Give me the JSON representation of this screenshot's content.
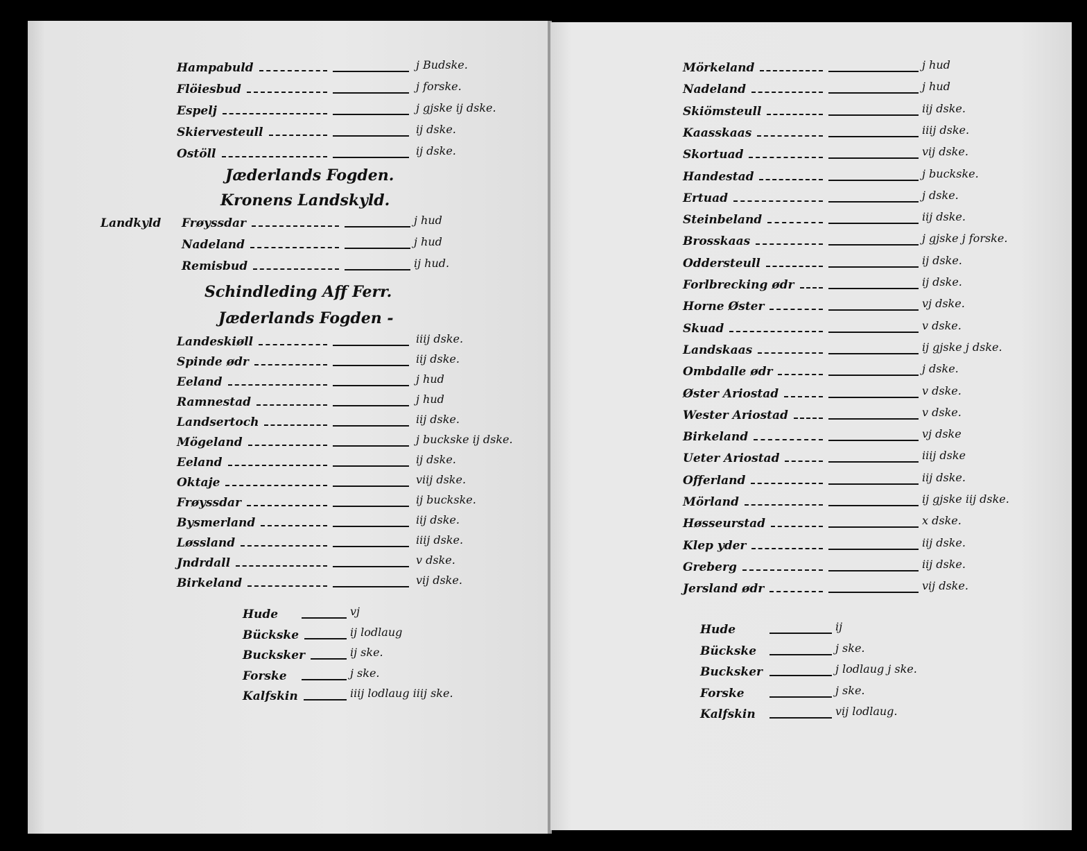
{
  "left_page": {
    "entries_top": [
      {
        "name": "Hampabuld",
        "value": "j Budske."
      },
      {
        "name": "Flöiesbud",
        "value": "j forske."
      },
      {
        "name": "Espelj",
        "value": "j gjske ij dske."
      },
      {
        "name": "Skiervesteull",
        "value": "ij dske."
      },
      {
        "name": "Ostöll",
        "value": "ij dske."
      }
    ],
    "heading_1": "Jæderlands Fogden.",
    "heading_2": "Kronens Landskyld.",
    "margin_note": "Landkyld",
    "entries_landskyld": [
      {
        "name": "Frøyssdar",
        "value": "j hud"
      },
      {
        "name": "Nadeland",
        "value": "j hud"
      },
      {
        "name": "Remisbud",
        "value": "ij hud."
      }
    ],
    "heading_3": "Schindleding Aff Ferr.",
    "heading_4": "Jæderlands Fogden -",
    "entries_main": [
      {
        "name": "Landeskiøll",
        "value": "iiij dske."
      },
      {
        "name": "Spinde ødr",
        "value": "iij dske."
      },
      {
        "name": "Eeland",
        "value": "j hud"
      },
      {
        "name": "Ramnestad",
        "value": "j hud"
      },
      {
        "name": "Landsertoch",
        "value": "iij dske."
      },
      {
        "name": "Mögeland",
        "value": "j buckske ij dske."
      },
      {
        "name": "Eeland",
        "value": "ij dske."
      },
      {
        "name": "Oktaje",
        "value": "viij dske."
      },
      {
        "name": "Frøyssdar",
        "value": "ij buckske."
      },
      {
        "name": "Bysmerland",
        "value": "iij dske."
      },
      {
        "name": "Løssland",
        "value": "iiij dske."
      },
      {
        "name": "Jndrdall",
        "value": "v dske."
      },
      {
        "name": "Birkeland",
        "value": "vij dske."
      }
    ],
    "summary": [
      {
        "name": "Hude",
        "value": "vj"
      },
      {
        "name": "Bückske",
        "value": "ij lodlaug"
      },
      {
        "name": "Bucksker",
        "value": "ij ske."
      },
      {
        "name": "Forske",
        "value": "j ske."
      },
      {
        "name": "Kalfskin",
        "value": "iiij lodlaug iiij ske."
      }
    ]
  },
  "right_page": {
    "entries": [
      {
        "name": "Mörkeland",
        "value": "j hud"
      },
      {
        "name": "Nadeland",
        "value": "j hud"
      },
      {
        "name": "Skiömsteull",
        "value": "iij dske."
      },
      {
        "name": "Kaasskaas",
        "value": "iiij dske."
      },
      {
        "name": "Skortuad",
        "value": "vij dske."
      },
      {
        "name": "Handestad",
        "value": "j buckske."
      },
      {
        "name": "Ertuad",
        "value": "j dske."
      },
      {
        "name": "Steinbeland",
        "value": "iij dske."
      },
      {
        "name": "Brosskaas",
        "value": "j gjske j forske."
      },
      {
        "name": "Oddersteull",
        "value": "ij dske."
      },
      {
        "name": "Forlbrecking ødr",
        "value": "ij dske."
      },
      {
        "name": "Horne Øster",
        "value": "vj dske."
      },
      {
        "name": "Skuad",
        "value": "v dske."
      },
      {
        "name": "Landskaas",
        "value": "ij gjske j dske."
      },
      {
        "name": "Ombdalle ødr",
        "value": "j dske."
      },
      {
        "name": "Øster Ariostad",
        "value": "v dske."
      },
      {
        "name": "Wester Ariostad",
        "value": "v dske."
      },
      {
        "name": "Birkeland",
        "value": "vj dske"
      },
      {
        "name": "Ueter Ariostad",
        "value": "iiij dske"
      },
      {
        "name": "Offerland",
        "value": "iij dske."
      },
      {
        "name": "Mörland",
        "value": "ij gjske iij dske."
      },
      {
        "name": "Høsseurstad",
        "value": "x dske."
      },
      {
        "name": "Klep yder",
        "value": "iij dske."
      },
      {
        "name": "Greberg",
        "value": "iij dske."
      },
      {
        "name": "Jersland ødr",
        "value": "vij dske."
      }
    ],
    "summary": [
      {
        "name": "Hude",
        "value": "ij"
      },
      {
        "name": "Bückske",
        "value": "j ske."
      },
      {
        "name": "Bucksker",
        "value": "j lodlaug j ske."
      },
      {
        "name": "Forske",
        "value": "j ske."
      },
      {
        "name": "Kalfskin",
        "value": "vij lodlaug."
      }
    ]
  }
}
